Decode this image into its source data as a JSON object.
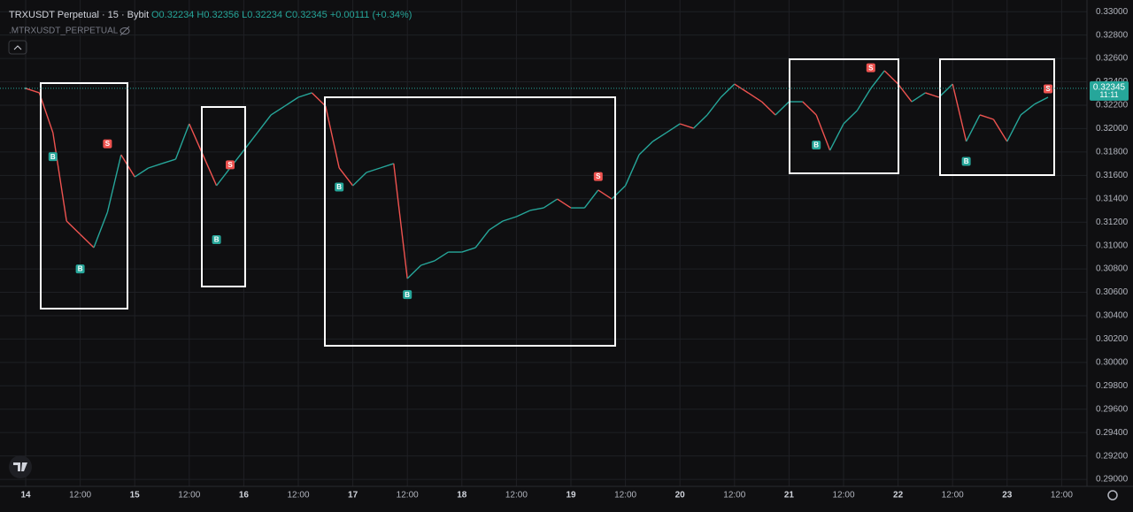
{
  "chart_data": {
    "type": "line",
    "title": "TRXUSDT Perpetual · 15 · Bybit",
    "ohlc": "O0.32234 H0.32356 L0.32234 C0.32345 +0.00111 (+0.34%)",
    "indicator": ".MTRXUSDT_PERPETUAL",
    "countdown": "11:11",
    "last_price": 0.32345,
    "up_color": "#26a69a",
    "down_color": "#ef5350",
    "categories": [
      "14",
      null,
      null,
      null,
      "12:00",
      null,
      null,
      null,
      "15",
      null,
      null,
      null,
      "12:00",
      null,
      null,
      null,
      "16",
      null,
      null,
      null,
      "12:00",
      null,
      null,
      null,
      "17",
      null,
      null,
      null,
      "12:00",
      null,
      null,
      null,
      "18",
      null,
      null,
      null,
      "12:00",
      null,
      null,
      null,
      "19",
      null,
      null,
      null,
      "12:00",
      null,
      null,
      null,
      "20",
      null,
      null,
      null,
      "12:00",
      null,
      null,
      null,
      "21",
      null,
      null,
      null,
      "12:00",
      null,
      null,
      null,
      "22",
      null,
      null,
      null,
      "12:00",
      null,
      null,
      null,
      "23",
      null,
      null,
      null,
      "12:00"
    ],
    "values": [
      0.32344,
      0.32306,
      0.31965,
      0.31209,
      0.31096,
      0.30982,
      0.31285,
      0.31776,
      0.31587,
      0.31663,
      0.31701,
      0.31738,
      0.32041,
      0.31776,
      0.31512,
      0.31663,
      0.31814,
      0.31965,
      0.32117,
      0.32192,
      0.32268,
      0.32306,
      0.32192,
      0.31663,
      0.31512,
      0.31625,
      0.31663,
      0.31701,
      0.30717,
      0.30831,
      0.30869,
      0.30944,
      0.30944,
      0.30982,
      0.31133,
      0.31209,
      0.31247,
      0.313,
      0.31322,
      0.31398,
      0.31322,
      0.31322,
      0.31474,
      0.31398,
      0.31512,
      0.31776,
      0.3189,
      0.31965,
      0.32041,
      0.32003,
      0.32117,
      0.32268,
      0.32381,
      0.32306,
      0.3223,
      0.32117,
      0.3223,
      0.3223,
      0.32117,
      0.31814,
      0.32041,
      0.32155,
      0.32344,
      0.32495,
      0.32381,
      0.3223,
      0.32306,
      0.32268,
      0.32381,
      0.3189,
      0.32117,
      0.32079,
      0.3189,
      0.32117,
      0.32208,
      0.32268,
      null
    ],
    "markers": [
      {
        "text": "B",
        "color": "#26a69a",
        "values": [
          null,
          null,
          0.3176,
          null,
          0.308,
          null,
          null,
          null,
          null,
          null,
          null,
          null,
          null,
          null,
          0.3105,
          null,
          null,
          null,
          null,
          null,
          null,
          null,
          null,
          0.315,
          null,
          null,
          null,
          null,
          0.3058,
          null,
          null,
          null,
          null,
          null,
          null,
          null,
          null,
          null,
          null,
          null,
          null,
          null,
          null,
          null,
          null,
          null,
          null,
          null,
          null,
          null,
          null,
          null,
          null,
          null,
          null,
          null,
          null,
          null,
          0.3186,
          null,
          null,
          null,
          null,
          null,
          null,
          null,
          null,
          null,
          null,
          0.3172,
          null,
          null,
          null,
          null,
          null,
          null,
          null
        ]
      },
      {
        "text": "S",
        "color": "#ef5350",
        "values": [
          null,
          null,
          null,
          null,
          null,
          null,
          0.3187,
          null,
          null,
          null,
          null,
          null,
          null,
          null,
          null,
          0.3169,
          null,
          null,
          null,
          null,
          null,
          null,
          null,
          null,
          null,
          null,
          null,
          null,
          null,
          null,
          null,
          null,
          null,
          null,
          null,
          null,
          null,
          null,
          null,
          null,
          null,
          null,
          0.3159,
          null,
          null,
          null,
          null,
          null,
          null,
          null,
          null,
          null,
          null,
          null,
          null,
          null,
          null,
          null,
          null,
          null,
          null,
          null,
          0.3252,
          null,
          null,
          null,
          null,
          null,
          null,
          null,
          null,
          null,
          null,
          null,
          null,
          0.3234,
          null
        ]
      }
    ],
    "ylim": [
      0.2894,
      0.331
    ],
    "yticks": [
      {
        "value": 0.29,
        "label": "0.29000"
      },
      {
        "value": 0.292,
        "label": "0.29200"
      },
      {
        "value": 0.294,
        "label": "0.29400"
      },
      {
        "value": 0.296,
        "label": "0.29600"
      },
      {
        "value": 0.298,
        "label": "0.29800"
      },
      {
        "value": 0.3,
        "label": "0.30000"
      },
      {
        "value": 0.302,
        "label": "0.30200"
      },
      {
        "value": 0.304,
        "label": "0.30400"
      },
      {
        "value": 0.306,
        "label": "0.30600"
      },
      {
        "value": 0.308,
        "label": "0.30800"
      },
      {
        "value": 0.31,
        "label": "0.31000"
      },
      {
        "value": 0.312,
        "label": "0.31200"
      },
      {
        "value": 0.314,
        "label": "0.31400"
      },
      {
        "value": 0.316,
        "label": "0.31600"
      },
      {
        "value": 0.318,
        "label": "0.31800"
      },
      {
        "value": 0.32,
        "label": "0.32000"
      },
      {
        "value": 0.322,
        "label": "0.32200"
      },
      {
        "value": 0.324,
        "label": "0.32400"
      },
      {
        "value": 0.326,
        "label": "0.32600"
      },
      {
        "value": 0.328,
        "label": "0.32800"
      },
      {
        "value": 0.33,
        "label": "0.33000"
      }
    ],
    "grid": true
  }
}
